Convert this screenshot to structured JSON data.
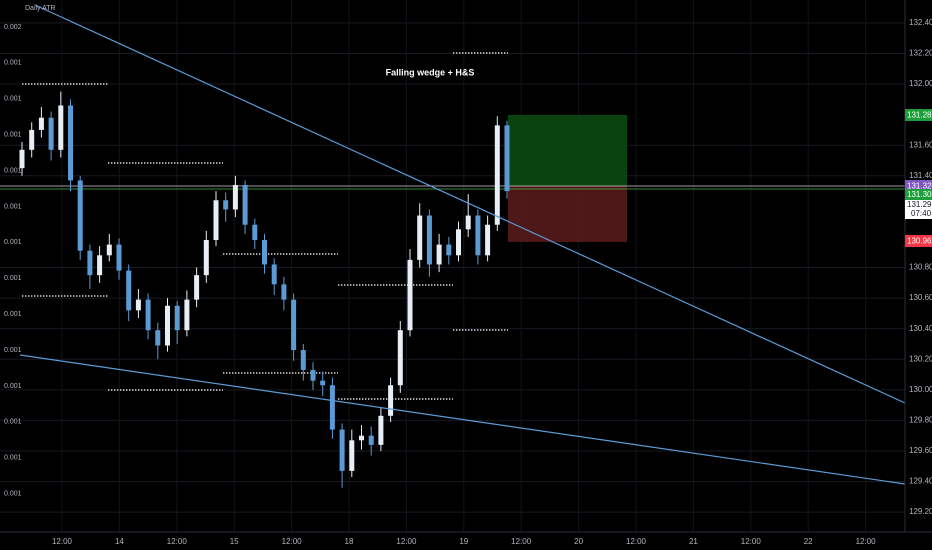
{
  "chart_data": {
    "type": "candlestick",
    "title": "Falling wedge + H&S",
    "indicator_label": "Daily ATR",
    "up_color": "#e8eef5",
    "down_color": "#5b9bd5",
    "grid": true,
    "ylim": [
      129.07,
      132.55
    ],
    "yticks": [
      {
        "value": 129.2,
        "label": "129.200"
      },
      {
        "value": 129.4,
        "label": "129.400"
      },
      {
        "value": 129.6,
        "label": "129.600"
      },
      {
        "value": 129.8,
        "label": "129.800"
      },
      {
        "value": 130.0,
        "label": "130.000"
      },
      {
        "value": 130.2,
        "label": "130.200"
      },
      {
        "value": 130.4,
        "label": "130.400"
      },
      {
        "value": 130.6,
        "label": "130.600"
      },
      {
        "value": 130.8,
        "label": "130.800"
      },
      {
        "value": 131.4,
        "label": "131.400"
      },
      {
        "value": 131.6,
        "label": "131.600"
      },
      {
        "value": 132.0,
        "label": "132.000"
      },
      {
        "value": 132.2,
        "label": "132.200"
      },
      {
        "value": 132.4,
        "label": "132.400"
      }
    ],
    "left_axis_labels": [
      "0.002",
      "0.001",
      "0.001",
      "0.001",
      "0.001",
      "0.001",
      "0.001",
      "0.001",
      "0.001",
      "0.001",
      "0.001",
      "0.001",
      "0.001",
      "0.001"
    ],
    "x_axis_labels": [
      "12:00",
      "14",
      "12:00",
      "15",
      "12:00",
      "18",
      "12:00",
      "19",
      "12:00",
      "20",
      "12:00",
      "21",
      "12:00",
      "22",
      "12:00"
    ],
    "price_labels": {
      "target": "131.287",
      "entry": "131.328",
      "mid": "131.308",
      "last": "131.296",
      "countdown": "07:40",
      "stop": "130.962"
    },
    "open": [
      131.45,
      131.57,
      131.7,
      131.78,
      131.57,
      131.86,
      131.37,
      130.91,
      130.75,
      130.88,
      130.95,
      130.78,
      130.52,
      130.59,
      130.39,
      130.29,
      130.55,
      130.39,
      130.59,
      130.75,
      130.98,
      131.24,
      131.18,
      131.34,
      131.08,
      130.98,
      130.82,
      130.69,
      130.59,
      130.26,
      130.13,
      130.06,
      130.03,
      129.74,
      129.47,
      129.67,
      129.7,
      129.64,
      129.83,
      130.03,
      130.39,
      130.85,
      131.14,
      130.82,
      130.95,
      130.88,
      131.05,
      131.14,
      130.88,
      131.08,
      131.73
    ],
    "high": [
      131.62,
      131.75,
      131.85,
      131.82,
      131.95,
      131.9,
      131.4,
      130.95,
      130.94,
      131.02,
      130.99,
      130.82,
      130.66,
      130.63,
      130.44,
      130.6,
      130.58,
      130.65,
      130.8,
      131.04,
      131.3,
      131.29,
      131.4,
      131.37,
      131.12,
      131.02,
      130.86,
      130.74,
      130.63,
      130.3,
      130.18,
      130.12,
      130.08,
      129.78,
      129.74,
      129.77,
      129.76,
      129.88,
      130.08,
      130.45,
      130.92,
      131.22,
      131.18,
      131.02,
      131.0,
      131.1,
      131.28,
      131.18,
      131.14,
      131.79,
      131.76
    ],
    "low": [
      131.4,
      131.52,
      131.65,
      131.5,
      131.52,
      131.3,
      130.85,
      130.66,
      130.7,
      130.84,
      130.72,
      130.45,
      130.47,
      130.33,
      130.2,
      130.25,
      130.3,
      130.35,
      130.54,
      130.7,
      130.94,
      131.1,
      131.13,
      131.02,
      130.92,
      130.76,
      130.62,
      130.52,
      130.19,
      130.06,
      130.0,
      129.96,
      129.68,
      129.36,
      129.43,
      129.61,
      129.57,
      129.6,
      129.79,
      129.98,
      130.35,
      130.8,
      130.74,
      130.77,
      130.82,
      130.84,
      131.0,
      130.82,
      130.84,
      131.04,
      131.25
    ],
    "close": [
      131.57,
      131.7,
      131.78,
      131.57,
      131.86,
      131.37,
      130.91,
      130.75,
      130.88,
      130.95,
      130.78,
      130.52,
      130.59,
      130.39,
      130.29,
      130.55,
      130.39,
      130.59,
      130.75,
      130.98,
      131.24,
      131.18,
      131.34,
      131.08,
      130.98,
      130.82,
      130.69,
      130.59,
      130.26,
      130.13,
      130.06,
      130.03,
      129.74,
      129.47,
      129.67,
      129.7,
      129.64,
      129.83,
      130.03,
      130.39,
      130.85,
      131.14,
      130.82,
      130.95,
      130.88,
      131.05,
      131.14,
      130.88,
      131.08,
      131.73,
      131.3
    ]
  }
}
